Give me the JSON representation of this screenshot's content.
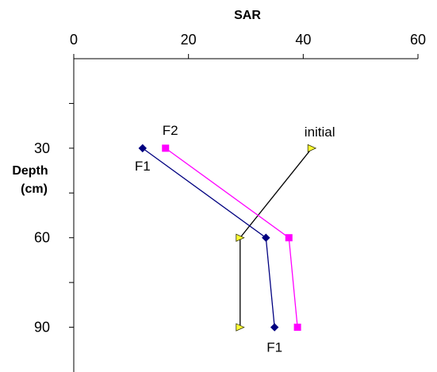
{
  "chart_data": {
    "type": "line",
    "xlabel": "SAR",
    "ylabel_lines": [
      "Depth",
      "(cm)"
    ],
    "xlim": [
      0,
      60
    ],
    "ylim": [
      0,
      105
    ],
    "y_inverted": true,
    "x_ticks": [
      0,
      20,
      40,
      60
    ],
    "x_tick_labels": [
      "0",
      "20",
      "40",
      "60"
    ],
    "y_ticks": [
      30,
      60,
      90
    ],
    "y_tick_labels": [
      "30",
      "60",
      "90"
    ],
    "x_axis_position": "top",
    "grid": false,
    "series": [
      {
        "name": "initial",
        "color": "#000000",
        "marker": "triangle",
        "marker_color": "#ffff33",
        "points": [
          {
            "x": 41.5,
            "y": 30
          },
          {
            "x": 29,
            "y": 60
          },
          {
            "x": 29,
            "y": 90
          }
        ]
      },
      {
        "name": "F1",
        "color": "#000080",
        "marker": "diamond",
        "marker_color": "#000080",
        "points": [
          {
            "x": 12,
            "y": 30
          },
          {
            "x": 33.5,
            "y": 60
          },
          {
            "x": 35,
            "y": 90
          }
        ]
      },
      {
        "name": "F2",
        "color": "#ff00ff",
        "marker": "square",
        "marker_color": "#ff00ff",
        "points": [
          {
            "x": 16,
            "y": 30
          },
          {
            "x": 37.5,
            "y": 60
          },
          {
            "x": 39,
            "y": 90
          }
        ]
      }
    ],
    "annotations": [
      {
        "text": "F2",
        "series": "F2",
        "near": "top"
      },
      {
        "text": "initial",
        "series": "initial",
        "near": "top"
      },
      {
        "text": "F1",
        "series": "F1",
        "near": "top"
      },
      {
        "text": "F1",
        "series": "F1",
        "near": "bottom"
      }
    ]
  }
}
